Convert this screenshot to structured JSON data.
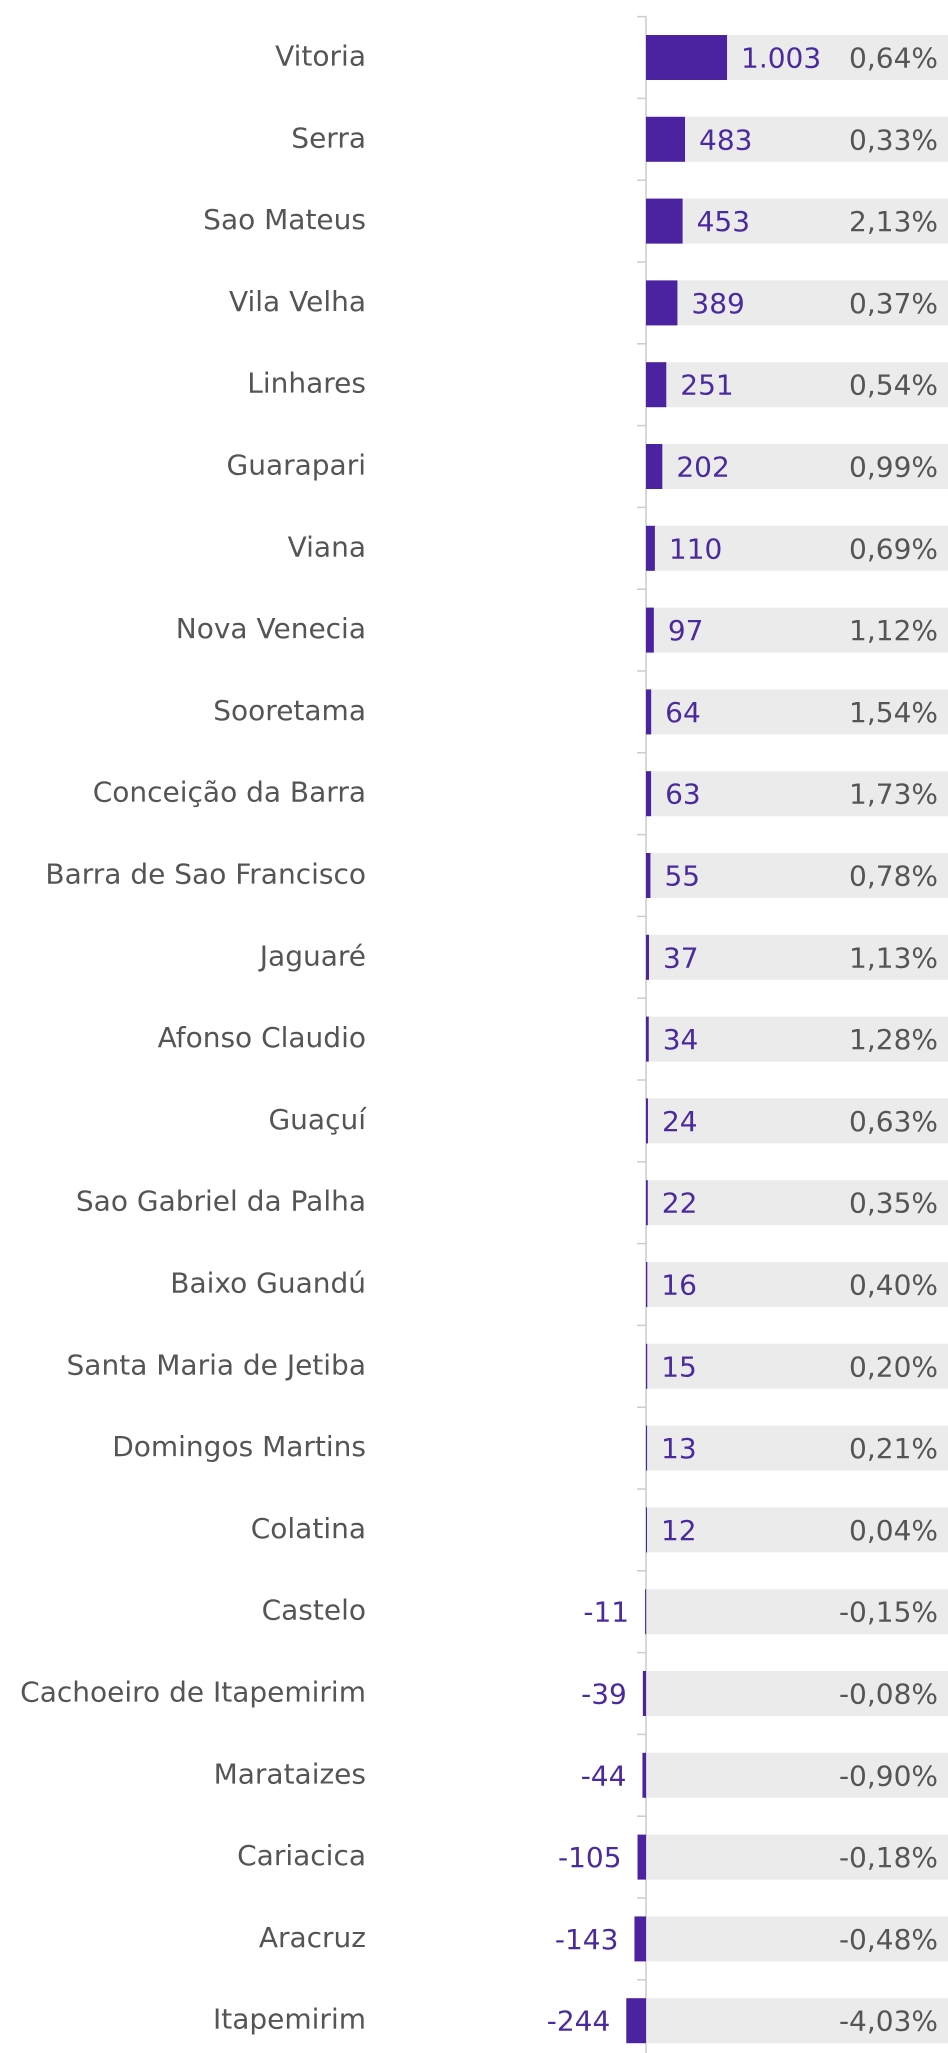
{
  "chart_data": {
    "type": "bar",
    "orientation": "horizontal",
    "color": "#4b22a0",
    "categories": [
      "Vitoria",
      "Serra",
      "Sao Mateus",
      "Vila Velha",
      "Linhares",
      "Guarapari",
      "Viana",
      "Nova Venecia",
      "Sooretama",
      "Conceição da Barra",
      "Barra de Sao Francisco",
      "Jaguaré",
      "Afonso Claudio",
      "Guaçuí",
      "Sao Gabriel da Palha",
      "Baixo Guandú",
      "Santa Maria de Jetiba",
      "Domingos Martins",
      "Colatina",
      "Castelo",
      "Cachoeiro de Itapemirim",
      "Marataizes",
      "Cariacica",
      "Aracruz",
      "Itapemirim"
    ],
    "values": [
      1003,
      483,
      453,
      389,
      251,
      202,
      110,
      97,
      64,
      63,
      55,
      37,
      34,
      24,
      22,
      16,
      15,
      13,
      12,
      -11,
      -39,
      -44,
      -105,
      -143,
      -244
    ],
    "value_labels": [
      "1.003",
      "483",
      "453",
      "389",
      "251",
      "202",
      "110",
      "97",
      "64",
      "63",
      "55",
      "37",
      "34",
      "24",
      "22",
      "16",
      "15",
      "13",
      "12",
      "-11",
      "-39",
      "-44",
      "-105",
      "-143",
      "-244"
    ],
    "percent_values": [
      0.64,
      0.33,
      2.13,
      0.37,
      0.54,
      0.99,
      0.69,
      1.12,
      1.54,
      1.73,
      0.78,
      1.13,
      1.28,
      0.63,
      0.35,
      0.4,
      0.2,
      0.21,
      0.04,
      -0.15,
      -0.08,
      -0.9,
      -0.18,
      -0.48,
      -4.03
    ],
    "percent_labels": [
      "0,64%",
      "0,33%",
      "2,13%",
      "0,37%",
      "0,54%",
      "0,99%",
      "0,69%",
      "1,12%",
      "1,54%",
      "1,73%",
      "0,78%",
      "1,13%",
      "1,28%",
      "0,63%",
      "0,35%",
      "0,40%",
      "0,20%",
      "0,21%",
      "0,04%",
      "-0,15%",
      "-0,08%",
      "-0,90%",
      "-0,18%",
      "-0,48%",
      "-4,03%"
    ]
  }
}
